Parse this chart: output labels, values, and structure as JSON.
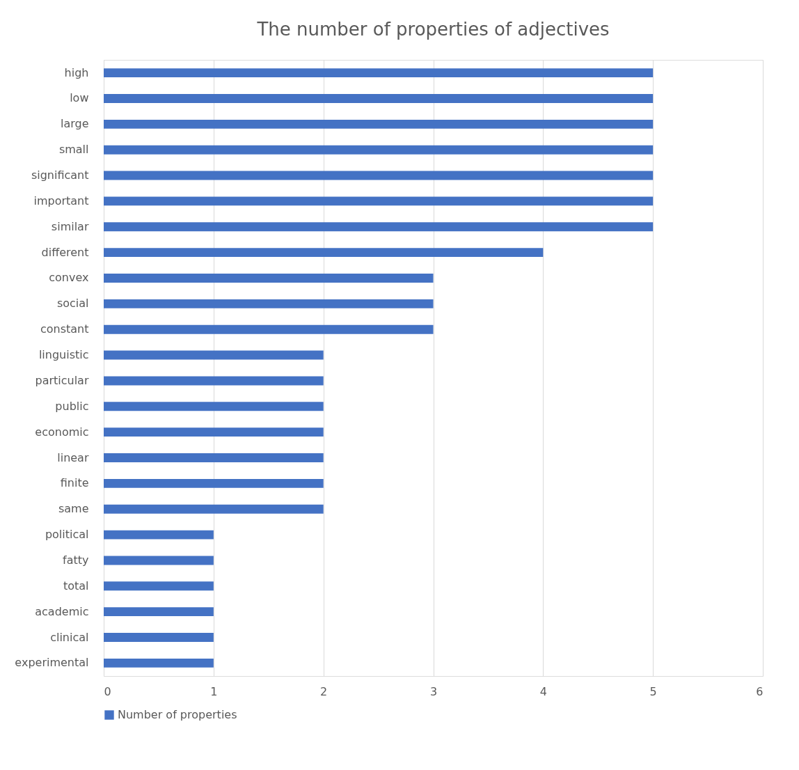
{
  "chart_data": {
    "type": "bar",
    "orientation": "horizontal",
    "title": "The number of properties of adjectives",
    "categories": [
      "high",
      "low",
      "large",
      "small",
      "significant",
      "important",
      "similar",
      "different",
      "convex",
      "social",
      "constant",
      "linguistic",
      "particular",
      "public",
      "economic",
      "linear",
      "finite",
      "same",
      "political",
      "fatty",
      "total",
      "academic",
      "clinical",
      "experimental"
    ],
    "series": [
      {
        "name": "Number of properties",
        "color": "#4472c4",
        "values": [
          5,
          5,
          5,
          5,
          5,
          5,
          5,
          4,
          3,
          3,
          3,
          2,
          2,
          2,
          2,
          2,
          2,
          2,
          1,
          1,
          1,
          1,
          1,
          1
        ]
      }
    ],
    "xlim": [
      0,
      6
    ],
    "xticks": [
      0,
      1,
      2,
      3,
      4,
      5,
      6
    ],
    "grid": "x",
    "legend": "bottom"
  }
}
